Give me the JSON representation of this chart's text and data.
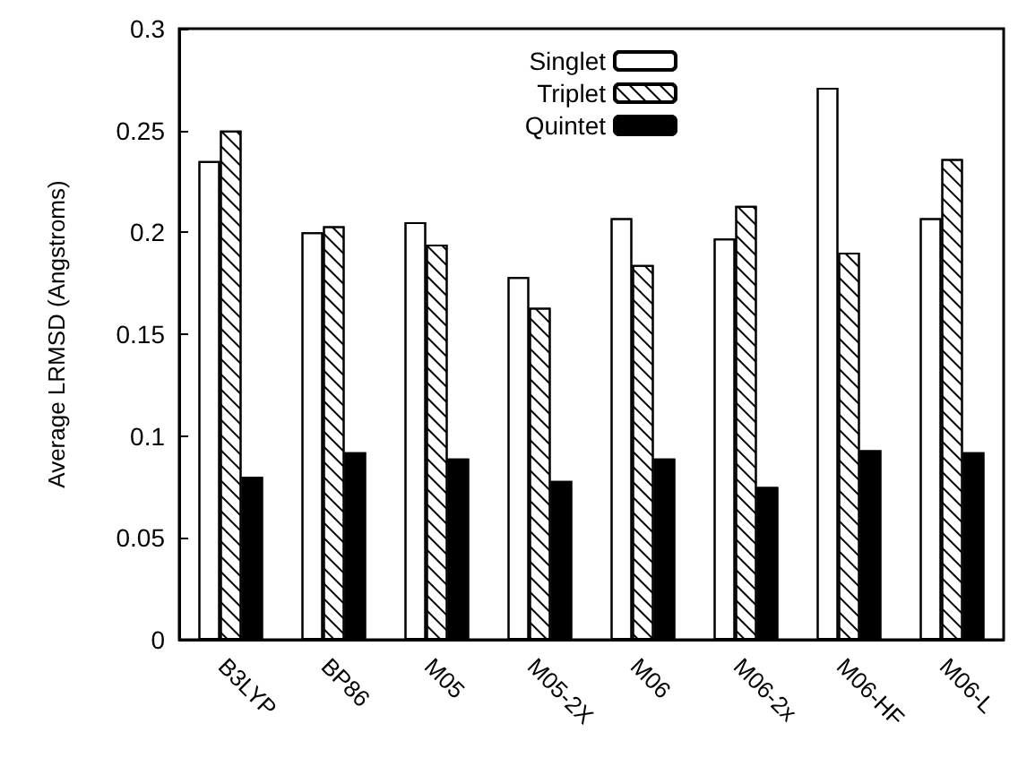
{
  "chart_data": {
    "type": "bar",
    "ylabel": "Average LRMSD (Angstroms)",
    "categories": [
      "B3LYP",
      "BP86",
      "M05",
      "M05-2X",
      "M06",
      "M06-2x",
      "M06-HF",
      "M06-L"
    ],
    "series": [
      {
        "name": "Singlet",
        "color": "#ffffff",
        "values": [
          0.235,
          0.2,
          0.205,
          0.178,
          0.207,
          0.197,
          0.271,
          0.207
        ]
      },
      {
        "name": "Triplet",
        "color": "#ffffff",
        "values": [
          0.25,
          0.203,
          0.194,
          0.163,
          0.184,
          0.213,
          0.19,
          0.236
        ]
      },
      {
        "name": "Quintet",
        "color": "#000000",
        "values": [
          0.08,
          0.092,
          0.089,
          0.078,
          0.089,
          0.075,
          0.093,
          0.092
        ]
      }
    ],
    "ylim": [
      0,
      0.3
    ],
    "yticks": [
      0,
      0.05,
      0.1,
      0.15,
      0.2,
      0.25,
      0.3
    ],
    "grid": false,
    "legend": "top right"
  }
}
